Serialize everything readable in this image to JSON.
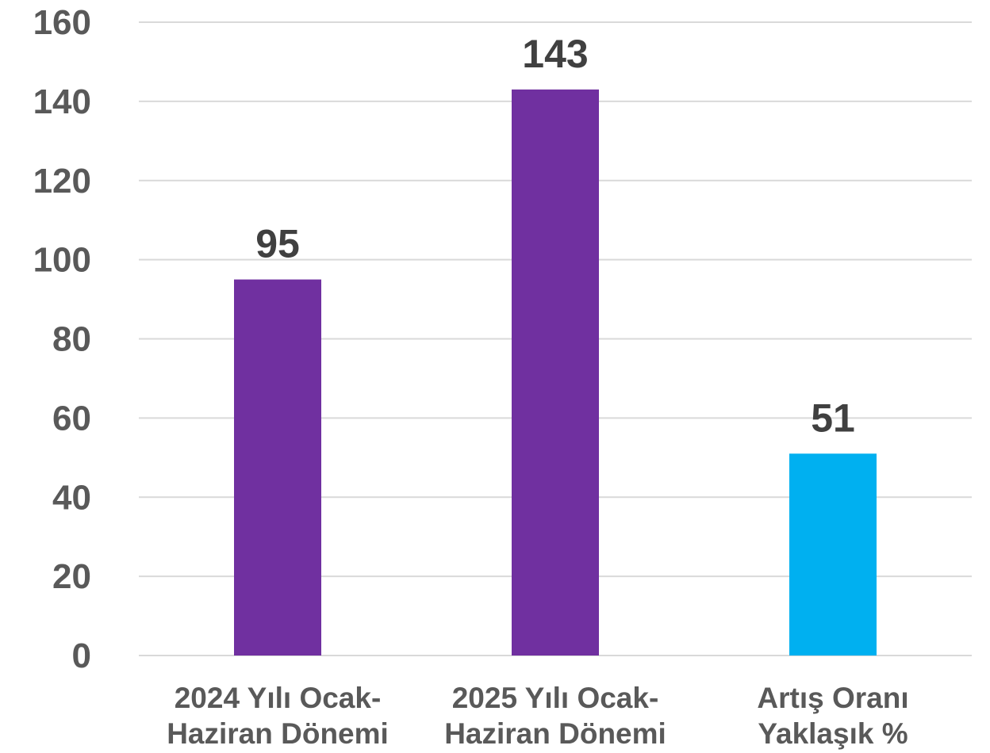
{
  "chart_data": {
    "type": "bar",
    "title": "",
    "xlabel": "",
    "ylabel": "",
    "ylim": [
      0,
      160
    ],
    "yticks": [
      0,
      20,
      40,
      60,
      80,
      100,
      120,
      140,
      160
    ],
    "ytick_labels": [
      "0",
      "20",
      "40",
      "60",
      "80",
      "100",
      "120",
      "140",
      "160"
    ],
    "grid": true,
    "legend": "none",
    "categories": [
      [
        "2024 Yılı Ocak-",
        "Haziran Dönemi"
      ],
      [
        "2025 Yılı Ocak-",
        "Haziran Dönemi"
      ],
      [
        "Artış Oranı",
        "Yaklaşık %"
      ]
    ],
    "values": [
      95,
      143,
      51
    ],
    "data_labels": [
      "95",
      "143",
      "51"
    ],
    "bar_colors": [
      "#7030A0",
      "#7030A0",
      "#00B0F0"
    ]
  },
  "colors": {
    "gridline": "#D9D9D9",
    "axis_text": "#595959",
    "data_label_text": "#404040"
  }
}
